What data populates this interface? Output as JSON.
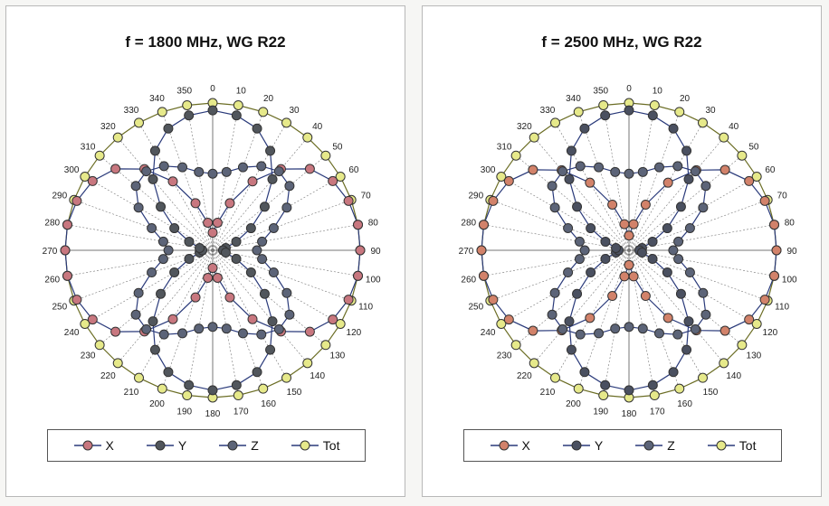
{
  "chart_data": [
    {
      "type": "polar-line",
      "title": "f = 1800 MHz, WG R22",
      "angles": [
        0,
        10,
        20,
        30,
        40,
        50,
        60,
        70,
        80,
        90,
        100,
        110,
        120,
        130,
        140,
        150,
        160,
        170,
        180,
        190,
        200,
        210,
        220,
        230,
        240,
        250,
        260,
        270,
        280,
        290,
        300,
        310,
        320,
        330,
        340,
        350
      ],
      "angle_tick_labels": [
        "0",
        "10",
        "20",
        "30",
        "40",
        "50",
        "60",
        "70",
        "80",
        "90",
        "100",
        "110",
        "120",
        "130",
        "140",
        "150",
        "160",
        "170",
        "180",
        "190",
        "200",
        "210",
        "220",
        "230",
        "240",
        "250",
        "260",
        "270",
        "280",
        "290",
        "300",
        "310",
        "320",
        "330",
        "340",
        "350"
      ],
      "series": [
        {
          "name": "X",
          "color": "#c8777f",
          "values": [
            0.12,
            0.19,
            0.34,
            0.54,
            0.72,
            0.86,
            0.94,
            0.98,
            1.0,
            1.0,
            1.0,
            0.98,
            0.94,
            0.86,
            0.72,
            0.54,
            0.34,
            0.19,
            0.12,
            0.19,
            0.34,
            0.54,
            0.72,
            0.86,
            0.94,
            0.98,
            1.0,
            1.0,
            1.0,
            0.98,
            0.94,
            0.86,
            0.72,
            0.54,
            0.34,
            0.19
          ]
        },
        {
          "name": "Y",
          "color": "#51565c",
          "values": [
            0.95,
            0.93,
            0.88,
            0.78,
            0.63,
            0.46,
            0.3,
            0.17,
            0.09,
            0.07,
            0.09,
            0.17,
            0.3,
            0.46,
            0.63,
            0.78,
            0.88,
            0.93,
            0.95,
            0.93,
            0.88,
            0.78,
            0.63,
            0.46,
            0.3,
            0.17,
            0.09,
            0.07,
            0.09,
            0.17,
            0.3,
            0.46,
            0.63,
            0.78,
            0.88,
            0.93
          ]
        },
        {
          "name": "Z",
          "color": "#5c6478",
          "values": [
            0.52,
            0.54,
            0.6,
            0.66,
            0.7,
            0.68,
            0.58,
            0.44,
            0.34,
            0.3,
            0.34,
            0.44,
            0.58,
            0.68,
            0.7,
            0.66,
            0.6,
            0.54,
            0.52,
            0.54,
            0.6,
            0.66,
            0.7,
            0.68,
            0.58,
            0.44,
            0.34,
            0.3,
            0.34,
            0.44,
            0.58,
            0.68,
            0.7,
            0.66,
            0.6,
            0.54
          ]
        },
        {
          "name": "Tot",
          "color": "#e6e98a",
          "values": [
            1,
            1,
            1,
            1,
            1,
            1,
            1,
            1,
            1,
            1,
            1,
            1,
            1,
            1,
            1,
            1,
            1,
            1,
            1,
            1,
            1,
            1,
            1,
            1,
            1,
            1,
            1,
            1,
            1,
            1,
            1,
            1,
            1,
            1,
            1,
            1
          ]
        }
      ]
    },
    {
      "type": "polar-line",
      "title": "f = 2500 MHz, WG R22",
      "angles": [
        0,
        10,
        20,
        30,
        40,
        50,
        60,
        70,
        80,
        90,
        100,
        110,
        120,
        130,
        140,
        150,
        160,
        170,
        180,
        190,
        200,
        210,
        220,
        230,
        240,
        250,
        260,
        270,
        280,
        290,
        300,
        310,
        320,
        330,
        340,
        350
      ],
      "angle_tick_labels": [
        "0",
        "10",
        "20",
        "30",
        "40",
        "50",
        "60",
        "70",
        "80",
        "90",
        "100",
        "110",
        "120",
        "130",
        "140",
        "150",
        "160",
        "170",
        "180",
        "190",
        "200",
        "210",
        "220",
        "230",
        "240",
        "250",
        "260",
        "270",
        "280",
        "290",
        "300",
        "310",
        "320",
        "330",
        "340",
        "350"
      ],
      "series": [
        {
          "name": "X",
          "color": "#d2826a",
          "values": [
            0.1,
            0.18,
            0.33,
            0.53,
            0.71,
            0.85,
            0.94,
            0.98,
            1.0,
            1.0,
            1.0,
            0.98,
            0.94,
            0.85,
            0.71,
            0.53,
            0.33,
            0.18,
            0.1,
            0.18,
            0.33,
            0.53,
            0.71,
            0.85,
            0.94,
            0.98,
            1.0,
            1.0,
            1.0,
            0.98,
            0.94,
            0.85,
            0.71,
            0.53,
            0.33,
            0.18
          ]
        },
        {
          "name": "Y",
          "color": "#4a5060",
          "values": [
            0.95,
            0.93,
            0.88,
            0.78,
            0.63,
            0.46,
            0.3,
            0.17,
            0.09,
            0.07,
            0.09,
            0.17,
            0.3,
            0.46,
            0.63,
            0.78,
            0.88,
            0.93,
            0.95,
            0.93,
            0.88,
            0.78,
            0.63,
            0.46,
            0.3,
            0.17,
            0.09,
            0.07,
            0.09,
            0.17,
            0.3,
            0.46,
            0.63,
            0.78,
            0.88,
            0.93
          ]
        },
        {
          "name": "Z",
          "color": "#5c6478",
          "values": [
            0.52,
            0.54,
            0.6,
            0.66,
            0.7,
            0.68,
            0.58,
            0.44,
            0.34,
            0.3,
            0.34,
            0.44,
            0.58,
            0.68,
            0.7,
            0.66,
            0.6,
            0.54,
            0.52,
            0.54,
            0.6,
            0.66,
            0.7,
            0.68,
            0.58,
            0.44,
            0.34,
            0.3,
            0.34,
            0.44,
            0.58,
            0.68,
            0.7,
            0.66,
            0.6,
            0.54
          ]
        },
        {
          "name": "Tot",
          "color": "#e6e98a",
          "values": [
            1,
            1,
            1,
            1,
            1,
            1,
            1,
            1,
            1,
            1,
            1,
            1,
            1,
            1,
            1,
            1,
            1,
            1,
            1,
            1,
            1,
            1,
            1,
            1,
            1,
            1,
            1,
            1,
            1,
            1,
            1,
            1,
            1,
            1,
            1,
            1
          ]
        }
      ]
    }
  ],
  "colors": {
    "marker_edge": "#333333",
    "tot_line": "#6b6d24",
    "grid": "#777777"
  }
}
